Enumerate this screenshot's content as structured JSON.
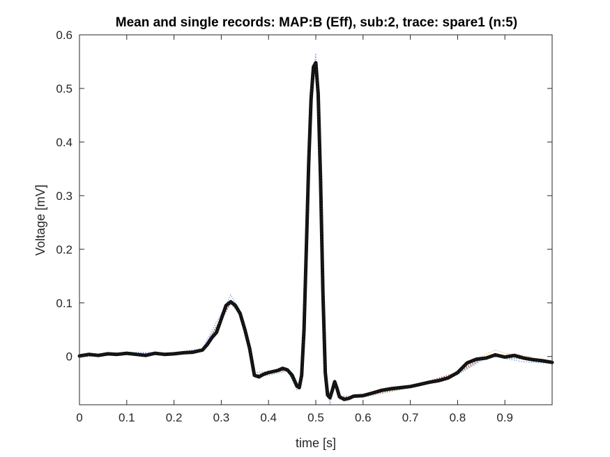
{
  "chart_data": {
    "type": "line",
    "title": "Mean and single records: MAP:B (Eff), sub:2, trace: spare1 (n:5)",
    "xlabel": "time [s]",
    "ylabel": "Voltage [mV]",
    "xlim": [
      0,
      1.0
    ],
    "ylim": [
      -0.09,
      0.6
    ],
    "grid": false,
    "xticks": [
      0,
      0.1,
      0.2,
      0.3,
      0.4,
      0.5,
      0.6,
      0.7,
      0.8,
      0.9
    ],
    "xtick_labels": [
      "0",
      "0.1",
      "0.2",
      "0.3",
      "0.4",
      "0.5",
      "0.6",
      "0.7",
      "0.8",
      "0.9"
    ],
    "yticks": [
      0,
      0.1,
      0.2,
      0.3,
      0.4,
      0.5,
      0.6
    ],
    "ytick_labels": [
      "0",
      "0.1",
      "0.2",
      "0.3",
      "0.4",
      "0.5",
      "0.6"
    ],
    "series": [
      {
        "style": "mean",
        "color": "#111111",
        "x": [
          0,
          0.02,
          0.04,
          0.06,
          0.08,
          0.1,
          0.12,
          0.14,
          0.16,
          0.18,
          0.2,
          0.22,
          0.24,
          0.26,
          0.27,
          0.28,
          0.29,
          0.3,
          0.31,
          0.32,
          0.33,
          0.34,
          0.35,
          0.36,
          0.37,
          0.38,
          0.39,
          0.4,
          0.41,
          0.42,
          0.43,
          0.44,
          0.45,
          0.46,
          0.465,
          0.47,
          0.475,
          0.48,
          0.485,
          0.49,
          0.495,
          0.5,
          0.505,
          0.51,
          0.515,
          0.52,
          0.525,
          0.53,
          0.535,
          0.54,
          0.545,
          0.55,
          0.56,
          0.57,
          0.58,
          0.6,
          0.62,
          0.64,
          0.66,
          0.68,
          0.7,
          0.72,
          0.74,
          0.76,
          0.78,
          0.8,
          0.82,
          0.84,
          0.86,
          0.88,
          0.9,
          0.92,
          0.94,
          0.96,
          0.98,
          1.0
        ],
        "y": [
          0.001,
          0.004,
          0.002,
          0.005,
          0.004,
          0.006,
          0.004,
          0.002,
          0.006,
          0.004,
          0.005,
          0.007,
          0.008,
          0.012,
          0.022,
          0.035,
          0.045,
          0.07,
          0.095,
          0.102,
          0.095,
          0.08,
          0.05,
          0.015,
          -0.035,
          -0.038,
          -0.033,
          -0.03,
          -0.028,
          -0.026,
          -0.022,
          -0.025,
          -0.035,
          -0.055,
          -0.058,
          -0.035,
          0.05,
          0.2,
          0.36,
          0.48,
          0.54,
          0.548,
          0.49,
          0.33,
          0.12,
          -0.03,
          -0.072,
          -0.077,
          -0.063,
          -0.047,
          -0.06,
          -0.075,
          -0.08,
          -0.078,
          -0.074,
          -0.073,
          -0.068,
          -0.063,
          -0.06,
          -0.058,
          -0.056,
          -0.052,
          -0.048,
          -0.045,
          -0.04,
          -0.03,
          -0.012,
          -0.005,
          -0.003,
          0.003,
          -0.001,
          0.002,
          -0.003,
          -0.006,
          -0.008,
          -0.011
        ]
      },
      {
        "style": "single",
        "color": "#3b6fd8",
        "x": [
          0,
          0.1,
          0.2,
          0.26,
          0.3,
          0.32,
          0.34,
          0.36,
          0.37,
          0.4,
          0.44,
          0.46,
          0.47,
          0.48,
          0.49,
          0.5,
          0.51,
          0.52,
          0.53,
          0.54,
          0.55,
          0.6,
          0.7,
          0.8,
          0.85,
          0.88,
          0.9,
          0.94,
          0.98,
          1.0
        ],
        "y": [
          0.003,
          0.008,
          0.007,
          0.015,
          0.08,
          0.115,
          0.085,
          0.02,
          -0.03,
          -0.028,
          -0.022,
          -0.06,
          -0.03,
          0.22,
          0.5,
          0.565,
          0.35,
          -0.02,
          -0.09,
          -0.05,
          -0.08,
          -0.07,
          -0.054,
          -0.034,
          -0.008,
          0.004,
          -0.004,
          -0.01,
          -0.012,
          -0.013
        ]
      },
      {
        "style": "single",
        "color": "#e39a2d",
        "x": [
          0,
          0.1,
          0.2,
          0.26,
          0.3,
          0.32,
          0.34,
          0.36,
          0.37,
          0.4,
          0.44,
          0.46,
          0.47,
          0.48,
          0.49,
          0.5,
          0.51,
          0.52,
          0.53,
          0.54,
          0.55,
          0.6,
          0.7,
          0.8,
          0.85,
          0.88,
          0.9,
          0.94,
          0.98,
          1.0
        ],
        "y": [
          0.0,
          0.005,
          0.006,
          0.013,
          0.072,
          0.1,
          0.08,
          0.018,
          -0.034,
          -0.03,
          -0.024,
          -0.056,
          -0.033,
          0.19,
          0.47,
          0.54,
          0.33,
          -0.03,
          -0.075,
          -0.046,
          -0.074,
          -0.072,
          -0.055,
          -0.03,
          0.0,
          0.012,
          0.006,
          0.002,
          -0.006,
          -0.009
        ]
      },
      {
        "style": "single",
        "color": "#2e9e4a",
        "x": [
          0,
          0.1,
          0.2,
          0.26,
          0.3,
          0.32,
          0.34,
          0.36,
          0.37,
          0.4,
          0.44,
          0.46,
          0.47,
          0.48,
          0.49,
          0.5,
          0.51,
          0.52,
          0.53,
          0.54,
          0.55,
          0.6,
          0.7,
          0.8,
          0.85,
          0.88,
          0.9,
          0.94,
          0.98,
          1.0
        ],
        "y": [
          0.002,
          0.006,
          0.005,
          0.011,
          0.068,
          0.098,
          0.078,
          0.012,
          -0.038,
          -0.035,
          -0.027,
          -0.062,
          -0.036,
          0.2,
          0.48,
          0.545,
          0.34,
          -0.028,
          -0.08,
          -0.05,
          -0.078,
          -0.076,
          -0.058,
          -0.032,
          -0.006,
          0.002,
          -0.003,
          -0.005,
          -0.009,
          -0.012
        ]
      },
      {
        "style": "single",
        "color": "#c0392b",
        "x": [
          0,
          0.1,
          0.2,
          0.26,
          0.3,
          0.32,
          0.34,
          0.36,
          0.37,
          0.4,
          0.44,
          0.46,
          0.47,
          0.48,
          0.49,
          0.5,
          0.51,
          0.52,
          0.53,
          0.54,
          0.55,
          0.6,
          0.7,
          0.8,
          0.85,
          0.88,
          0.9,
          0.94,
          0.98,
          1.0
        ],
        "y": [
          -0.001,
          0.004,
          0.006,
          0.012,
          0.07,
          0.101,
          0.079,
          0.014,
          -0.036,
          -0.031,
          -0.026,
          -0.058,
          -0.034,
          0.2,
          0.48,
          0.55,
          0.33,
          -0.027,
          -0.078,
          -0.048,
          -0.077,
          -0.074,
          -0.057,
          -0.029,
          -0.004,
          0.006,
          0.0,
          -0.002,
          -0.008,
          -0.01
        ]
      },
      {
        "style": "single",
        "color": "#8e44ad",
        "x": [
          0,
          0.1,
          0.2,
          0.26,
          0.3,
          0.32,
          0.34,
          0.36,
          0.37,
          0.4,
          0.44,
          0.46,
          0.47,
          0.48,
          0.49,
          0.5,
          0.51,
          0.52,
          0.53,
          0.54,
          0.55,
          0.6,
          0.7,
          0.8,
          0.85,
          0.88,
          0.9,
          0.94,
          0.98,
          1.0
        ],
        "y": [
          0.001,
          0.007,
          0.004,
          0.012,
          0.071,
          0.1,
          0.08,
          0.016,
          -0.034,
          -0.03,
          -0.025,
          -0.059,
          -0.035,
          0.2,
          0.48,
          0.548,
          0.34,
          -0.03,
          -0.079,
          -0.046,
          -0.076,
          -0.073,
          -0.056,
          -0.031,
          -0.005,
          0.004,
          -0.002,
          -0.004,
          -0.008,
          -0.011
        ]
      }
    ]
  }
}
